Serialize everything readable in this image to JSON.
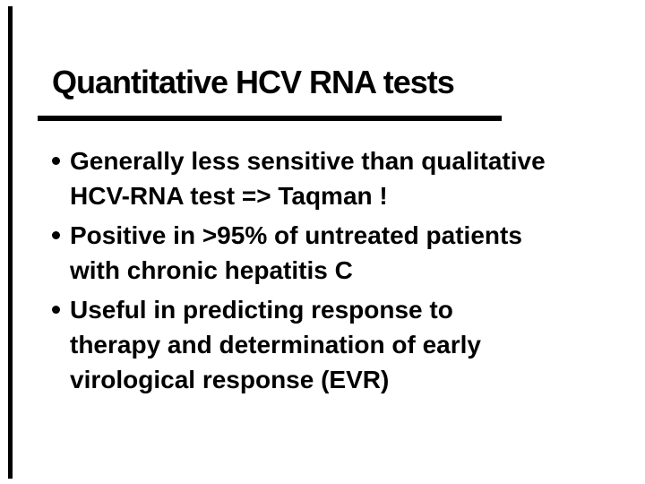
{
  "slide": {
    "title": "Quantitative HCV RNA tests",
    "bullets": [
      {
        "lines": [
          "Generally less sensitive than qualitative",
          "HCV-RNA test => Taqman !"
        ]
      },
      {
        "lines": [
          "Positive in >95% of untreated patients",
          "with chronic hepatitis C"
        ]
      },
      {
        "lines": [
          "Useful in predicting response to",
          "therapy and determination of early",
          "virological response (EVR)"
        ]
      }
    ],
    "colors": {
      "text": "#000000",
      "background": "#ffffff",
      "rule": "#000000",
      "edge_line": "#000000"
    }
  }
}
